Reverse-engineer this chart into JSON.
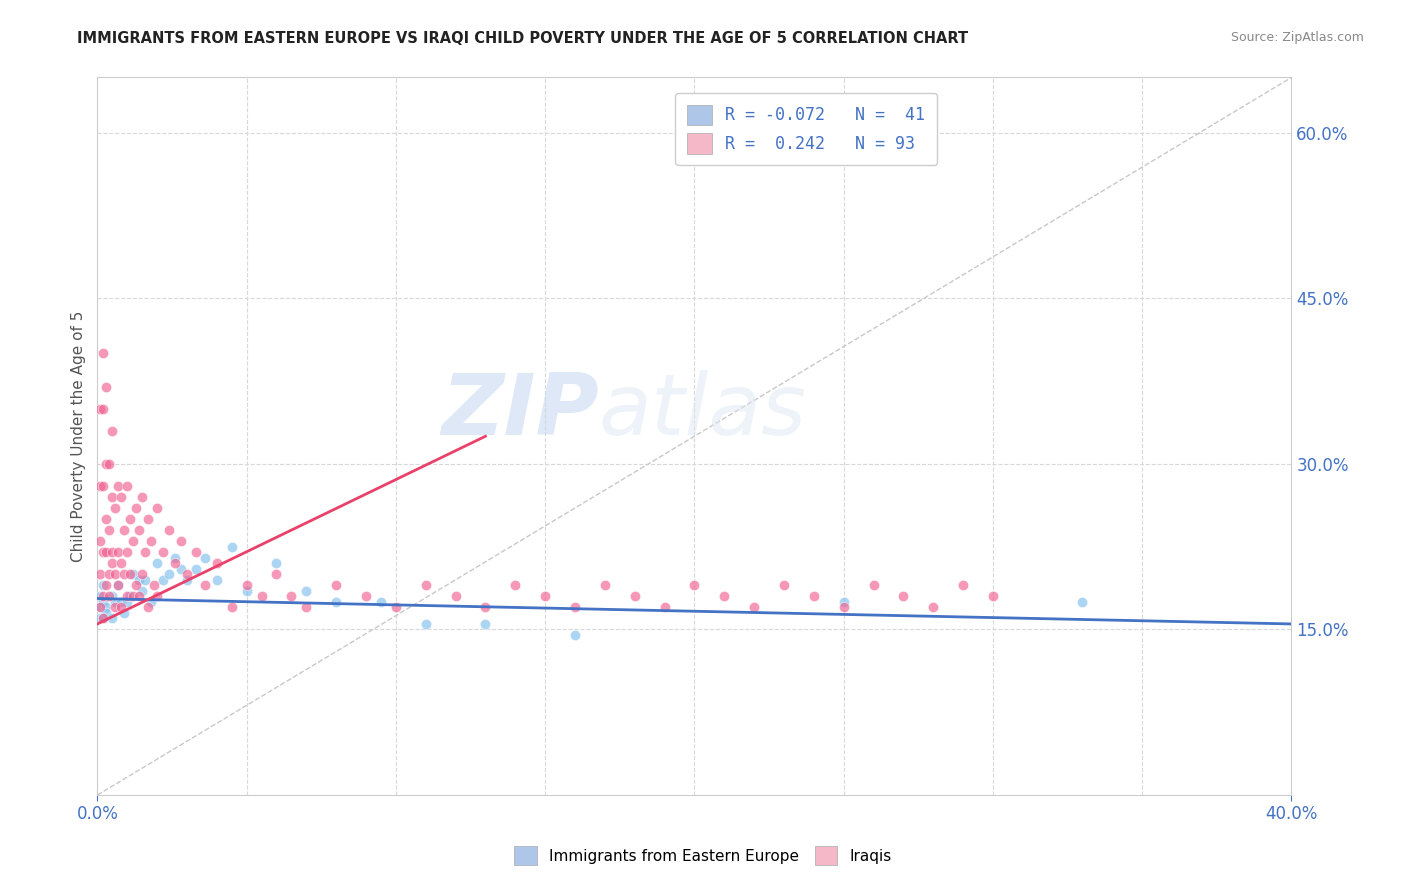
{
  "title": "IMMIGRANTS FROM EASTERN EUROPE VS IRAQI CHILD POVERTY UNDER THE AGE OF 5 CORRELATION CHART",
  "source": "Source: ZipAtlas.com",
  "ylabel": "Child Poverty Under the Age of 5",
  "right_yticks": [
    0.0,
    0.15,
    0.3,
    0.45,
    0.6
  ],
  "right_yticklabels": [
    "",
    "15.0%",
    "30.0%",
    "45.0%",
    "60.0%"
  ],
  "legend_labels_bottom": [
    "Immigrants from Eastern Europe",
    "Iraqis"
  ],
  "blue_scatter_x": [
    0.001,
    0.001,
    0.001,
    0.002,
    0.002,
    0.002,
    0.003,
    0.003,
    0.005,
    0.005,
    0.006,
    0.007,
    0.008,
    0.009,
    0.01,
    0.011,
    0.012,
    0.014,
    0.015,
    0.016,
    0.018,
    0.02,
    0.022,
    0.024,
    0.026,
    0.028,
    0.03,
    0.033,
    0.036,
    0.04,
    0.045,
    0.05,
    0.06,
    0.07,
    0.08,
    0.095,
    0.11,
    0.13,
    0.16,
    0.25,
    0.33
  ],
  "blue_scatter_y": [
    0.17,
    0.16,
    0.18,
    0.175,
    0.16,
    0.19,
    0.17,
    0.165,
    0.18,
    0.16,
    0.175,
    0.19,
    0.175,
    0.165,
    0.175,
    0.18,
    0.2,
    0.195,
    0.185,
    0.195,
    0.175,
    0.21,
    0.195,
    0.2,
    0.215,
    0.205,
    0.195,
    0.205,
    0.215,
    0.195,
    0.225,
    0.185,
    0.21,
    0.185,
    0.175,
    0.175,
    0.155,
    0.155,
    0.145,
    0.175,
    0.175
  ],
  "pink_scatter_x": [
    0.001,
    0.001,
    0.001,
    0.001,
    0.001,
    0.002,
    0.002,
    0.002,
    0.002,
    0.002,
    0.002,
    0.003,
    0.003,
    0.003,
    0.003,
    0.003,
    0.004,
    0.004,
    0.004,
    0.004,
    0.005,
    0.005,
    0.005,
    0.005,
    0.006,
    0.006,
    0.006,
    0.007,
    0.007,
    0.007,
    0.008,
    0.008,
    0.008,
    0.009,
    0.009,
    0.01,
    0.01,
    0.01,
    0.011,
    0.011,
    0.012,
    0.012,
    0.013,
    0.013,
    0.014,
    0.014,
    0.015,
    0.015,
    0.016,
    0.017,
    0.017,
    0.018,
    0.019,
    0.02,
    0.02,
    0.022,
    0.024,
    0.026,
    0.028,
    0.03,
    0.033,
    0.036,
    0.04,
    0.045,
    0.05,
    0.055,
    0.06,
    0.065,
    0.07,
    0.08,
    0.09,
    0.1,
    0.11,
    0.12,
    0.13,
    0.14,
    0.15,
    0.16,
    0.17,
    0.18,
    0.19,
    0.2,
    0.21,
    0.22,
    0.23,
    0.24,
    0.25,
    0.26,
    0.27,
    0.28,
    0.29,
    0.3
  ],
  "pink_scatter_y": [
    0.17,
    0.23,
    0.28,
    0.35,
    0.2,
    0.16,
    0.22,
    0.28,
    0.35,
    0.4,
    0.18,
    0.19,
    0.25,
    0.3,
    0.37,
    0.22,
    0.18,
    0.24,
    0.3,
    0.2,
    0.21,
    0.27,
    0.33,
    0.22,
    0.2,
    0.26,
    0.17,
    0.22,
    0.28,
    0.19,
    0.21,
    0.27,
    0.17,
    0.24,
    0.2,
    0.22,
    0.28,
    0.18,
    0.25,
    0.2,
    0.23,
    0.18,
    0.26,
    0.19,
    0.24,
    0.18,
    0.27,
    0.2,
    0.22,
    0.25,
    0.17,
    0.23,
    0.19,
    0.26,
    0.18,
    0.22,
    0.24,
    0.21,
    0.23,
    0.2,
    0.22,
    0.19,
    0.21,
    0.17,
    0.19,
    0.18,
    0.2,
    0.18,
    0.17,
    0.19,
    0.18,
    0.17,
    0.19,
    0.18,
    0.17,
    0.19,
    0.18,
    0.17,
    0.19,
    0.18,
    0.17,
    0.19,
    0.18,
    0.17,
    0.19,
    0.18,
    0.17,
    0.19,
    0.18,
    0.17,
    0.19,
    0.18
  ],
  "blue_line_x": [
    0.0,
    0.4
  ],
  "blue_line_y": [
    0.178,
    0.155
  ],
  "pink_line_x": [
    0.0,
    0.13
  ],
  "pink_line_y": [
    0.155,
    0.325
  ],
  "diag_line_x": [
    0.0,
    0.4
  ],
  "diag_line_y": [
    0.0,
    0.65
  ],
  "xlim": [
    0.0,
    0.4
  ],
  "ylim": [
    0.0,
    0.65
  ],
  "background_color": "#ffffff",
  "scatter_alpha": 0.65,
  "scatter_size": 55,
  "blue_color": "#7fbfed",
  "pink_color": "#f06090",
  "blue_line_color": "#4472c4",
  "pink_line_color": "#e8426a",
  "diag_line_color": "#c8c8c8",
  "watermark_zip": "ZIP",
  "watermark_atlas": "atlas",
  "title_color": "#222222",
  "source_color": "#888888",
  "legend_r_color": "#4472c4",
  "legend_blue_fill": "#aec6e8",
  "legend_pink_fill": "#f4b8c8",
  "grid_color": "#d8d8d8",
  "xtick_color": "#4472c4",
  "ytick_color": "#4472c4"
}
